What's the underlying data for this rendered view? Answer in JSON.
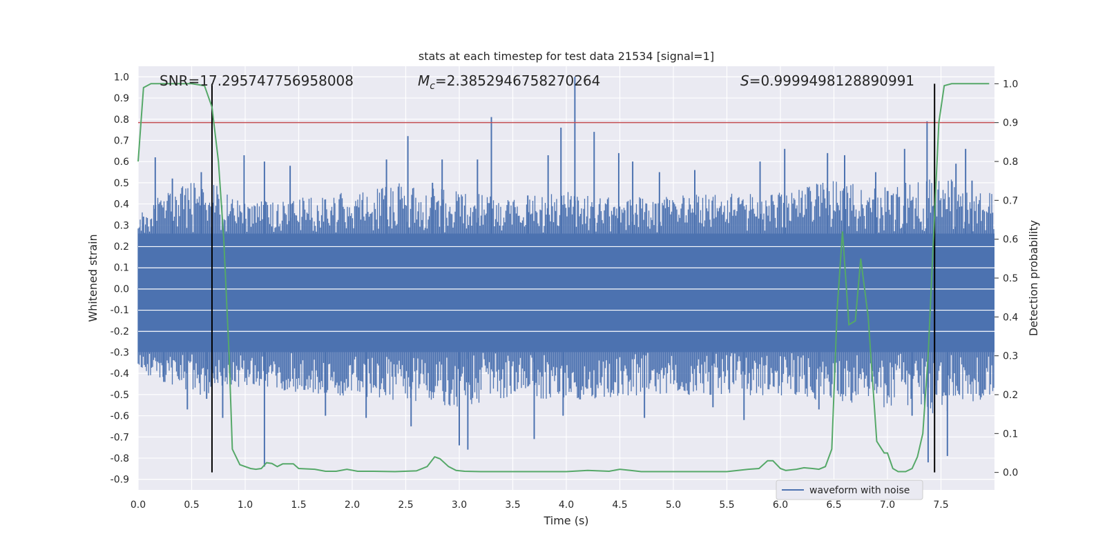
{
  "chart_data": {
    "type": "line",
    "title": "stats at each timestep for test data 21534 [signal=1]",
    "xlabel": "Time (s)",
    "ylabel": "Whitened strain",
    "y2label": "Detection probability",
    "xlim": [
      0.0,
      8.0
    ],
    "ylim": [
      -0.95,
      1.05
    ],
    "y2lim": [
      -0.045,
      1.045
    ],
    "xticks": [
      "0.0",
      "0.5",
      "1.0",
      "1.5",
      "2.0",
      "2.5",
      "3.0",
      "3.5",
      "4.0",
      "4.5",
      "5.0",
      "5.5",
      "6.0",
      "6.5",
      "7.0",
      "7.5"
    ],
    "yticks": [
      "1.0",
      "0.9",
      "0.8",
      "0.7",
      "0.6",
      "0.5",
      "0.4",
      "0.3",
      "0.2",
      "0.1",
      "0.0",
      "-0.1",
      "-0.2",
      "-0.3",
      "-0.4",
      "-0.5",
      "-0.6",
      "-0.7",
      "-0.8",
      "-0.9"
    ],
    "y2ticks": [
      "1.0",
      "0.9",
      "0.8",
      "0.7",
      "0.6",
      "0.5",
      "0.4",
      "0.3",
      "0.2",
      "0.1",
      "0.0"
    ],
    "grid": true,
    "legend_position": "lower-right",
    "annotations": {
      "snr": "SNR=17.295747756958008",
      "mc_symbol": "M",
      "mc_sub": "c",
      "mc_value": "=2.3852946758270264",
      "s_symbol": "S",
      "s_value": "=0.9999498128890991"
    },
    "threshold_y2": 0.9,
    "vlines_x": [
      0.69,
      7.44
    ],
    "waveform": {
      "name": "waveform with noise",
      "color": "#4c72b0",
      "dense_band": [
        -0.3,
        0.26
      ],
      "upper_envelope": [
        [
          0.0,
          0.34
        ],
        [
          0.25,
          0.45
        ],
        [
          0.5,
          0.52
        ],
        [
          0.75,
          0.48
        ],
        [
          1.0,
          0.4
        ],
        [
          1.5,
          0.42
        ],
        [
          2.0,
          0.45
        ],
        [
          2.5,
          0.5
        ],
        [
          3.0,
          0.45
        ],
        [
          3.5,
          0.42
        ],
        [
          4.0,
          0.45
        ],
        [
          4.5,
          0.42
        ],
        [
          5.0,
          0.43
        ],
        [
          5.5,
          0.44
        ],
        [
          6.0,
          0.45
        ],
        [
          6.5,
          0.5
        ],
        [
          7.0,
          0.48
        ],
        [
          7.5,
          0.52
        ],
        [
          8.0,
          0.45
        ]
      ],
      "lower_envelope": [
        [
          0.0,
          -0.38
        ],
        [
          0.25,
          -0.45
        ],
        [
          0.5,
          -0.5
        ],
        [
          0.75,
          -0.48
        ],
        [
          1.0,
          -0.45
        ],
        [
          1.5,
          -0.48
        ],
        [
          2.0,
          -0.5
        ],
        [
          2.5,
          -0.52
        ],
        [
          3.0,
          -0.55
        ],
        [
          3.5,
          -0.5
        ],
        [
          4.0,
          -0.52
        ],
        [
          4.5,
          -0.5
        ],
        [
          5.0,
          -0.5
        ],
        [
          5.5,
          -0.5
        ],
        [
          6.0,
          -0.5
        ],
        [
          6.5,
          -0.52
        ],
        [
          7.0,
          -0.55
        ],
        [
          7.5,
          -0.58
        ],
        [
          8.0,
          -0.5
        ]
      ],
      "spikes": [
        [
          0.05,
          0.34
        ],
        [
          0.16,
          0.62
        ],
        [
          0.24,
          -0.44
        ],
        [
          0.32,
          0.52
        ],
        [
          0.46,
          -0.57
        ],
        [
          0.59,
          0.55
        ],
        [
          0.64,
          -0.52
        ],
        [
          0.79,
          -0.61
        ],
        [
          0.99,
          0.63
        ],
        [
          1.18,
          0.6
        ],
        [
          1.18,
          -0.84
        ],
        [
          1.42,
          0.58
        ],
        [
          1.75,
          -0.6
        ],
        [
          2.13,
          -0.61
        ],
        [
          2.32,
          0.61
        ],
        [
          2.52,
          0.72
        ],
        [
          2.55,
          -0.65
        ],
        [
          2.75,
          0.5
        ],
        [
          2.84,
          0.61
        ],
        [
          3.0,
          -0.74
        ],
        [
          3.08,
          -0.76
        ],
        [
          3.17,
          0.61
        ],
        [
          3.3,
          0.81
        ],
        [
          3.64,
          0.44
        ],
        [
          3.7,
          -0.71
        ],
        [
          3.83,
          0.63
        ],
        [
          3.95,
          0.76
        ],
        [
          3.97,
          -0.6
        ],
        [
          4.08,
          1.0
        ],
        [
          4.26,
          0.74
        ],
        [
          4.49,
          0.64
        ],
        [
          4.62,
          0.6
        ],
        [
          4.73,
          -0.61
        ],
        [
          4.87,
          0.55
        ],
        [
          5.2,
          0.56
        ],
        [
          5.37,
          -0.56
        ],
        [
          5.66,
          -0.62
        ],
        [
          5.81,
          0.6
        ],
        [
          6.04,
          0.66
        ],
        [
          6.36,
          -0.57
        ],
        [
          6.44,
          0.64
        ],
        [
          6.6,
          0.63
        ],
        [
          6.89,
          0.55
        ],
        [
          7.16,
          0.66
        ],
        [
          7.23,
          -0.6
        ],
        [
          7.37,
          0.79
        ],
        [
          7.38,
          -0.82
        ],
        [
          7.56,
          -0.79
        ],
        [
          7.64,
          0.59
        ],
        [
          7.73,
          0.66
        ],
        [
          7.79,
          0.51
        ]
      ]
    },
    "probability": {
      "color": "#55a868",
      "points": [
        [
          0.0,
          0.8
        ],
        [
          0.05,
          0.99
        ],
        [
          0.12,
          1.0
        ],
        [
          0.3,
          1.0
        ],
        [
          0.5,
          1.0
        ],
        [
          0.62,
          0.995
        ],
        [
          0.69,
          0.94
        ],
        [
          0.75,
          0.8
        ],
        [
          0.8,
          0.6
        ],
        [
          0.85,
          0.3
        ],
        [
          0.88,
          0.06
        ],
        [
          0.95,
          0.02
        ],
        [
          1.05,
          0.01
        ],
        [
          1.1,
          0.008
        ],
        [
          1.15,
          0.01
        ],
        [
          1.2,
          0.025
        ],
        [
          1.25,
          0.023
        ],
        [
          1.3,
          0.015
        ],
        [
          1.35,
          0.022
        ],
        [
          1.45,
          0.022
        ],
        [
          1.5,
          0.01
        ],
        [
          1.65,
          0.008
        ],
        [
          1.75,
          0.003
        ],
        [
          1.85,
          0.003
        ],
        [
          1.95,
          0.008
        ],
        [
          2.05,
          0.003
        ],
        [
          2.2,
          0.003
        ],
        [
          2.4,
          0.002
        ],
        [
          2.6,
          0.004
        ],
        [
          2.7,
          0.015
        ],
        [
          2.77,
          0.04
        ],
        [
          2.82,
          0.035
        ],
        [
          2.9,
          0.015
        ],
        [
          2.97,
          0.005
        ],
        [
          3.05,
          0.003
        ],
        [
          3.2,
          0.002
        ],
        [
          3.5,
          0.002
        ],
        [
          4.0,
          0.002
        ],
        [
          4.2,
          0.005
        ],
        [
          4.4,
          0.003
        ],
        [
          4.5,
          0.008
        ],
        [
          4.6,
          0.005
        ],
        [
          4.7,
          0.002
        ],
        [
          5.0,
          0.002
        ],
        [
          5.5,
          0.002
        ],
        [
          5.7,
          0.008
        ],
        [
          5.8,
          0.01
        ],
        [
          5.88,
          0.03
        ],
        [
          5.93,
          0.03
        ],
        [
          6.0,
          0.01
        ],
        [
          6.05,
          0.005
        ],
        [
          6.15,
          0.008
        ],
        [
          6.22,
          0.012
        ],
        [
          6.3,
          0.01
        ],
        [
          6.36,
          0.008
        ],
        [
          6.42,
          0.015
        ],
        [
          6.48,
          0.06
        ],
        [
          6.53,
          0.42
        ],
        [
          6.58,
          0.62
        ],
        [
          6.64,
          0.38
        ],
        [
          6.7,
          0.39
        ],
        [
          6.75,
          0.55
        ],
        [
          6.82,
          0.4
        ],
        [
          6.9,
          0.08
        ],
        [
          6.97,
          0.05
        ],
        [
          7.0,
          0.05
        ],
        [
          7.05,
          0.01
        ],
        [
          7.1,
          0.002
        ],
        [
          7.17,
          0.002
        ],
        [
          7.23,
          0.01
        ],
        [
          7.28,
          0.04
        ],
        [
          7.33,
          0.1
        ],
        [
          7.38,
          0.3
        ],
        [
          7.43,
          0.6
        ],
        [
          7.48,
          0.9
        ],
        [
          7.53,
          0.995
        ],
        [
          7.6,
          1.0
        ],
        [
          7.8,
          1.0
        ],
        [
          7.95,
          1.0
        ]
      ]
    }
  }
}
